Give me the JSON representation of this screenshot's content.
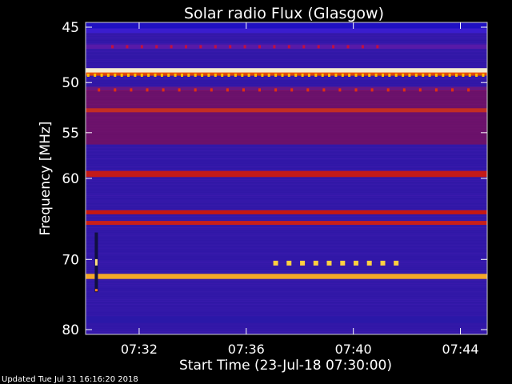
{
  "chart_data": {
    "type": "heatmap",
    "title": "Solar radio Flux (Glasgow)",
    "xlabel": "Start Time (23-Jul-18 07:30:00)",
    "ylabel": "Frequency [MHz]",
    "x_start_minutes": 0,
    "x_end_minutes": 15,
    "x_ticks": [
      "07:32",
      "07:36",
      "07:40",
      "07:44"
    ],
    "x_tick_minutes": [
      2,
      6,
      10,
      14
    ],
    "y_range_mhz": [
      45,
      80
    ],
    "y_scale": "logarithmic",
    "y_ticks": [
      45,
      50,
      55,
      60,
      70,
      80
    ],
    "background_level": "low (dark blue/purple)",
    "bands": [
      {
        "mhz": 45.3,
        "width_mhz": 0.4,
        "level": "medium-high",
        "color": "#3b1ed0"
      },
      {
        "mhz": 46.7,
        "width_mhz": 0.4,
        "level": "medium",
        "color": "#5a1aa8"
      },
      {
        "mhz": 48.9,
        "width_mhz": 0.5,
        "level": "very high",
        "color": "#fff8d0"
      },
      {
        "mhz": 49.2,
        "width_mhz": 0.3,
        "level": "high",
        "color": "#e84a00"
      },
      {
        "mhz": 50.6,
        "width_mhz": 0.4,
        "level": "medium",
        "color": "#6a1880"
      },
      {
        "mhz": 52.7,
        "width_mhz": 0.4,
        "level": "high",
        "color": "#ff5a00"
      },
      {
        "mhz": 53.5,
        "width_mhz": 5.5,
        "level": "medium-high",
        "color": "#9b0d38"
      },
      {
        "mhz": 59.5,
        "width_mhz": 0.7,
        "level": "high",
        "color": "#cc1a10"
      },
      {
        "mhz": 64.0,
        "width_mhz": 0.5,
        "level": "high",
        "color": "#d01808"
      },
      {
        "mhz": 65.3,
        "width_mhz": 0.5,
        "level": "high",
        "color": "#d22010"
      },
      {
        "mhz": 72.3,
        "width_mhz": 0.7,
        "level": "very high",
        "color": "#ffb020"
      },
      {
        "mhz": 78.5,
        "width_mhz": 1.0,
        "level": "medium",
        "color": "#2a18a8"
      }
    ],
    "events": [
      {
        "description": "periodic dots",
        "mhz": 49.3,
        "x_minutes_start": 0.1,
        "x_minutes_end": 14.9,
        "spacing_minutes": 0.25,
        "color": "#ffc000"
      },
      {
        "description": "periodic dots",
        "mhz": 50.7,
        "x_minutes_start": 0.5,
        "x_minutes_end": 14.8,
        "spacing_minutes": 0.6,
        "color": "#e03010"
      },
      {
        "description": "periodic dots",
        "mhz": 46.7,
        "x_minutes_start": 1.0,
        "x_minutes_end": 11.0,
        "spacing_minutes": 0.55,
        "color": "#c01040"
      },
      {
        "description": "pulsed burst",
        "mhz": 70.5,
        "x_minutes_start": 7.1,
        "x_minutes_end": 11.7,
        "spacing_minutes": 0.5,
        "color": "#ffd040"
      },
      {
        "description": "vertical streak",
        "x_minutes": 0.4,
        "mhz_range": [
          66.5,
          74.5
        ],
        "color": "#ffe080"
      }
    ],
    "grid": true
  },
  "footer": {
    "updated_text": "Updated Tue Jul 31 16:16:20 2018"
  }
}
